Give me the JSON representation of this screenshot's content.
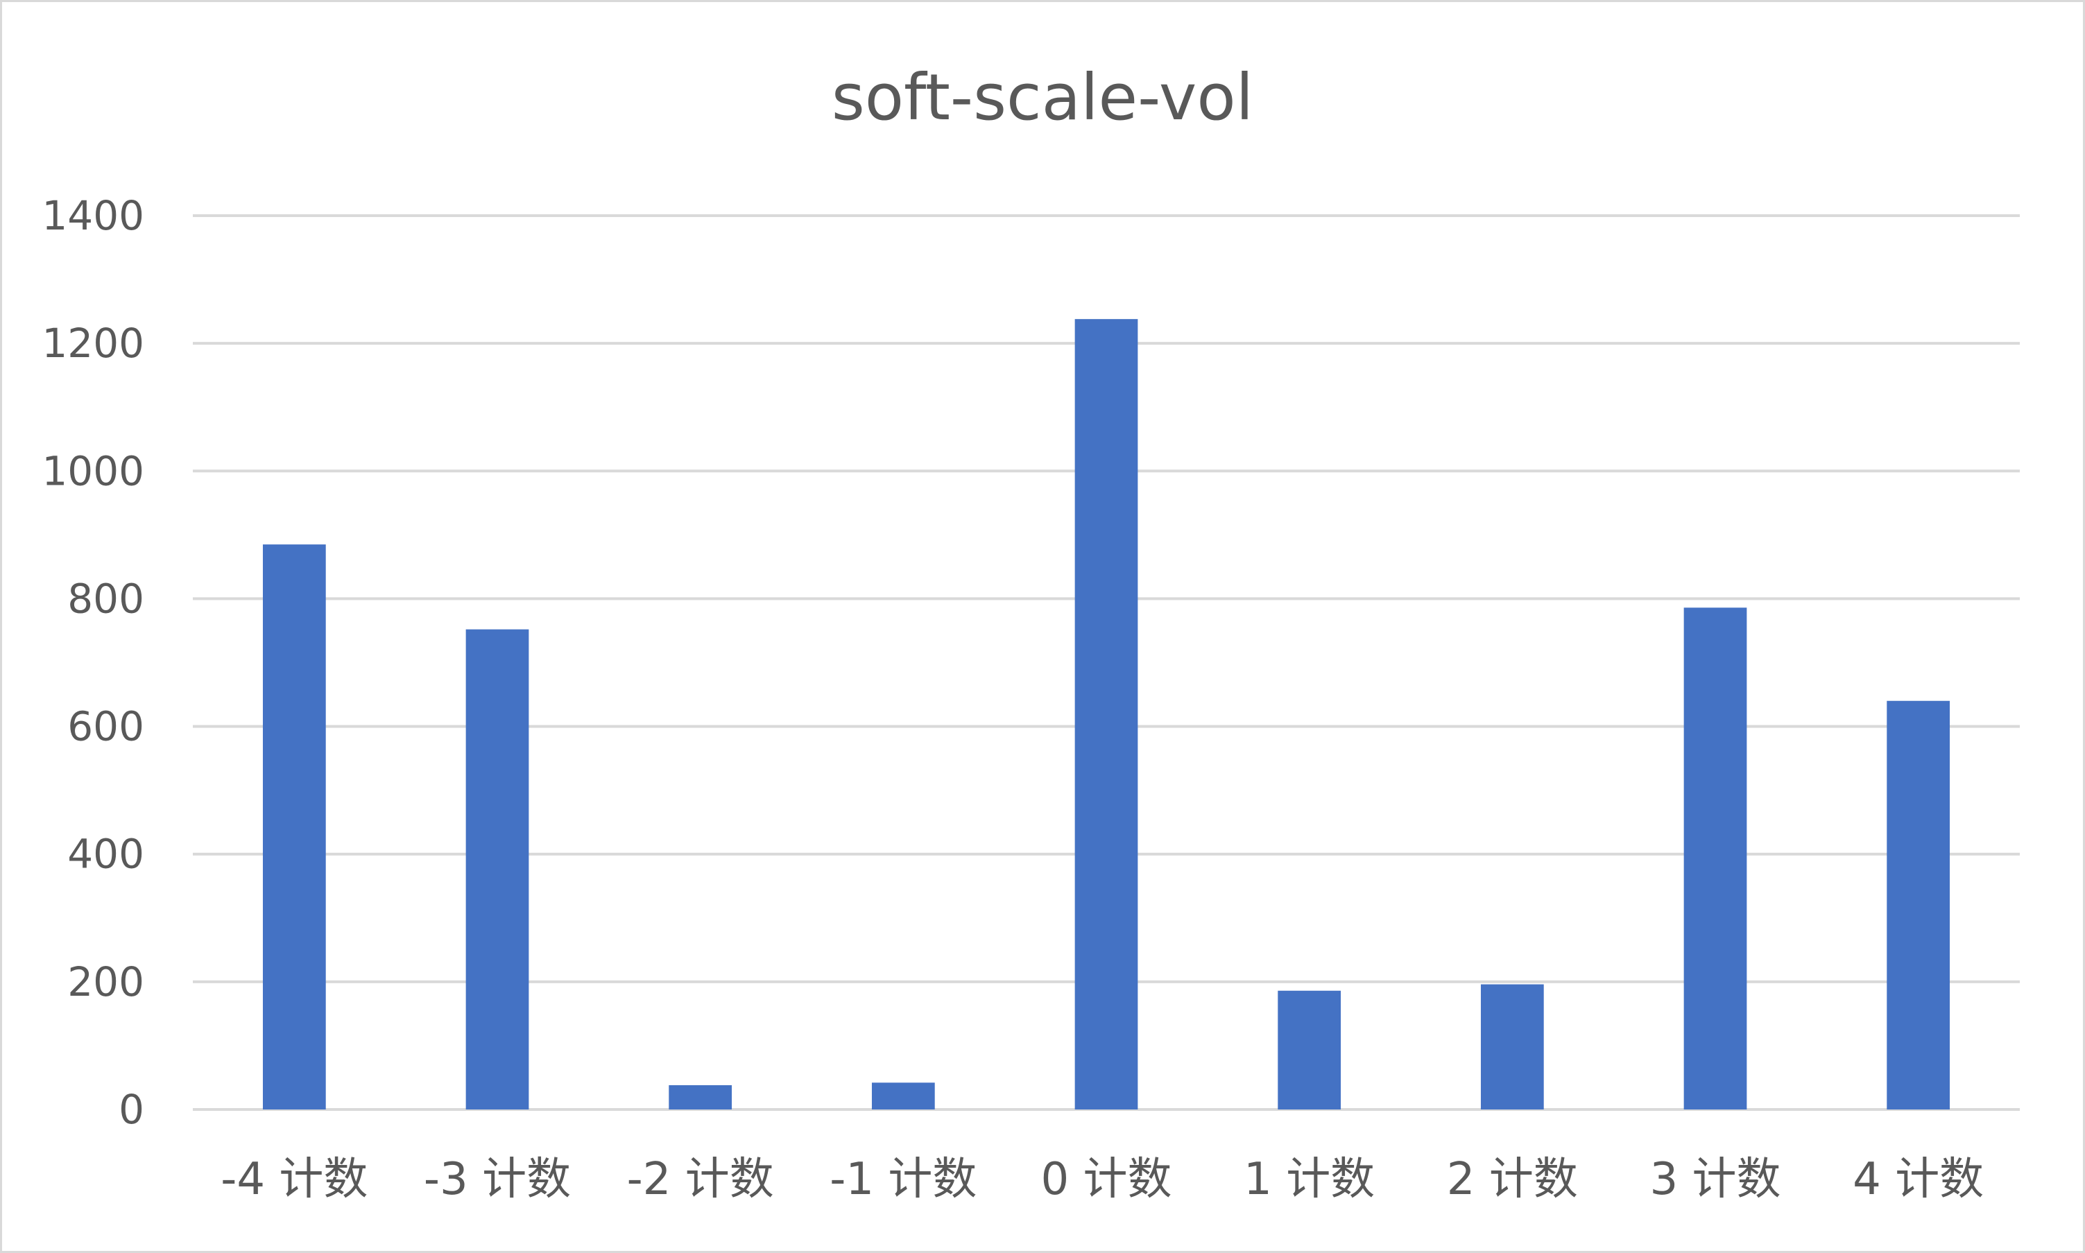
{
  "chart_data": {
    "type": "bar",
    "title": "soft-scale-vol",
    "xlabel": "",
    "ylabel": "",
    "categories": [
      "-4 计数",
      "-3 计数",
      "-2 计数",
      "-1 计数",
      "0 计数",
      "1 计数",
      "2 计数",
      "3 计数",
      "4 计数"
    ],
    "values": [
      885,
      752,
      38,
      42,
      1238,
      186,
      196,
      786,
      640
    ],
    "ylim": [
      0,
      1400
    ],
    "yticks": [
      0,
      200,
      400,
      600,
      800,
      1000,
      1200,
      1400
    ],
    "grid": true,
    "legend": "none",
    "bar_color": "#4472c4"
  }
}
